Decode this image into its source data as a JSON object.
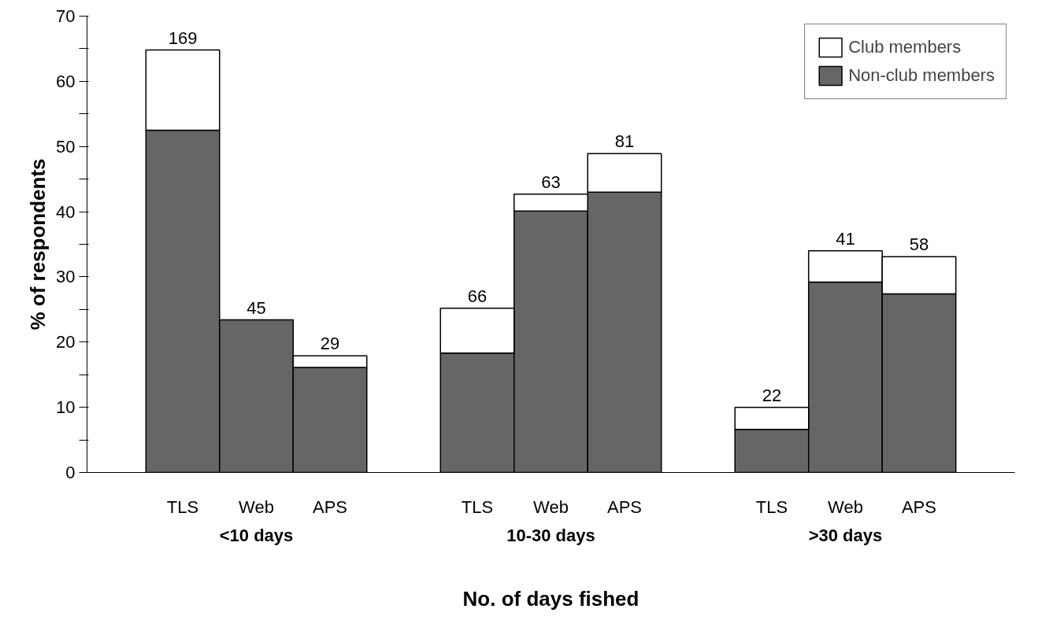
{
  "chart_data": {
    "type": "bar",
    "stacked": true,
    "xlabel": "No. of days fished",
    "ylabel": "% of respondents",
    "categories": [
      "TLS",
      "Web",
      "APS",
      "TLS",
      "Web",
      "APS",
      "TLS",
      "Web",
      "APS"
    ],
    "series": [
      {
        "name": "Non-club members",
        "color": "#666666",
        "values": [
          52.5,
          23.4,
          16.1,
          18.3,
          40.1,
          43.0,
          6.6,
          29.2,
          27.4
        ]
      },
      {
        "name": "Club members",
        "color": "#ffffff",
        "values": [
          12.3,
          null,
          1.8,
          6.9,
          2.6,
          5.9,
          3.4,
          4.8,
          5.7
        ]
      }
    ],
    "annotations": [
      "<10 days",
      "10-30 days",
      ">30 days",
      "169",
      "45",
      "29",
      "66",
      "63",
      "81",
      "22",
      "41",
      "58"
    ],
    "ylim": [
      0,
      70
    ],
    "yticks": [
      0,
      {
        "value": 5,
        "label": null
      },
      10,
      {
        "value": 15,
        "label": null
      },
      20,
      {
        "value": 25,
        "label": null
      },
      30,
      {
        "value": 35,
        "label": null
      },
      40,
      {
        "value": 45,
        "label": null
      },
      50,
      {
        "value": 55,
        "label": null
      },
      60,
      {
        "value": 65,
        "label": null
      },
      70
    ],
    "legend": "top right",
    "grid": false
  }
}
